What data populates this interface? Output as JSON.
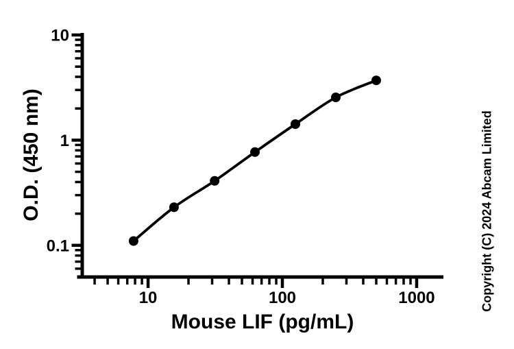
{
  "figure": {
    "background": "#ffffff",
    "ink_color": "#000000"
  },
  "chart_data": {
    "type": "line",
    "subtype": "scatter-points-with-smooth-fit-curve",
    "title": "",
    "xlabel": "Mouse LIF (pg/mL)",
    "ylabel": "O.D. (450 nm)",
    "x_scale": "log10",
    "y_scale": "log10",
    "x_major_ticks": [
      10,
      100,
      1000
    ],
    "x_tick_labels": [
      "10",
      "100",
      "1000"
    ],
    "y_major_ticks": [
      0.1,
      1,
      10
    ],
    "y_tick_labels": [
      "0.1",
      "1",
      "10"
    ],
    "x_range": [
      3.05,
      1582
    ],
    "y_range": [
      0.05,
      10.15
    ],
    "grid": false,
    "legend": "none",
    "marker": "filled-circle",
    "series": [
      {
        "name": "mouse-lif-standard-curve",
        "x": [
          7.8,
          15.6,
          31.3,
          62.5,
          125,
          250,
          500
        ],
        "y": [
          0.11,
          0.23,
          0.41,
          0.77,
          1.42,
          2.55,
          3.7
        ]
      }
    ]
  },
  "annotations": {
    "copyright": "Copyright (C) 2024 Abcam Limited"
  }
}
